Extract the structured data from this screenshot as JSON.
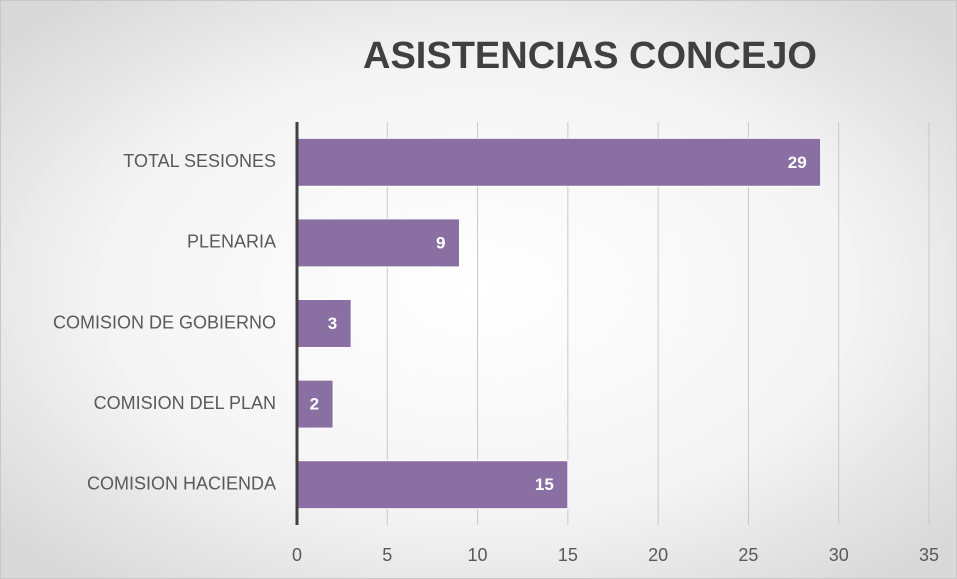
{
  "chart_data": {
    "type": "bar",
    "title": "ASISTENCIAS CONCEJO",
    "categories": [
      "TOTAL SESIONES",
      "PLENARIA",
      "COMISION DE GOBIERNO",
      "COMISION DEL PLAN",
      "COMISION HACIENDA"
    ],
    "values": [
      29,
      9,
      3,
      2,
      15
    ],
    "color": "#8a6fa3",
    "xlim": [
      0,
      35
    ],
    "xticks": [
      0,
      5,
      10,
      15,
      20,
      25,
      30,
      35
    ],
    "grid": true
  }
}
